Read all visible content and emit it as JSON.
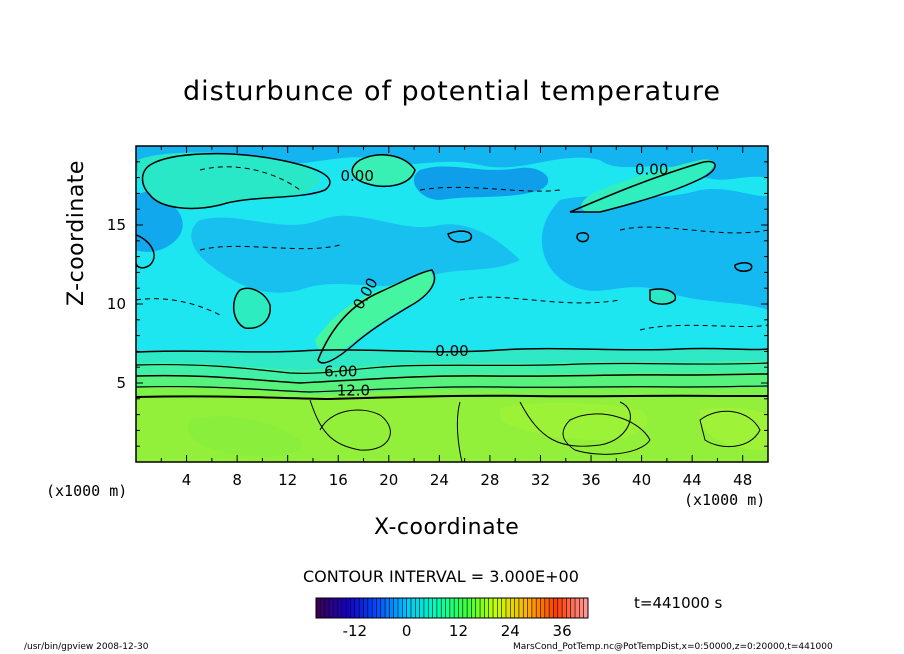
{
  "chart_data": {
    "type": "heatmap",
    "title": "disturbunce of potential temperature",
    "xlabel": "X-coordinate",
    "ylabel": "Z-coordinate",
    "x_unit_left": "(x1000 m)",
    "x_unit_right": "(x1000 m)",
    "xlim": [
      0,
      50
    ],
    "ylim": [
      0,
      20
    ],
    "x_ticks": [
      4,
      8,
      12,
      16,
      20,
      24,
      28,
      32,
      36,
      40,
      44,
      48
    ],
    "y_ticks": [
      5,
      10,
      15
    ],
    "contour_labels": [
      {
        "text": "0.00",
        "x": 17.5,
        "y": 17.8
      },
      {
        "text": "0.00",
        "x": 40.8,
        "y": 18.2
      },
      {
        "text": "0.00",
        "x": 18.5,
        "y": 10.5,
        "rotate": -60
      },
      {
        "text": "0.00",
        "x": 25.0,
        "y": 6.7
      },
      {
        "text": "6.00",
        "x": 16.2,
        "y": 5.4
      },
      {
        "text": "12.0",
        "x": 17.2,
        "y": 4.2
      }
    ],
    "contour_interval_text": "CONTOUR INTERVAL = 3.000E+00",
    "colorbar": {
      "ticks": [
        "-12",
        "0",
        "12",
        "24",
        "36"
      ],
      "tick_values": [
        -12,
        0,
        12,
        24,
        36
      ],
      "range": [
        -21,
        42
      ],
      "colors": [
        "#3b005a",
        "#1500c8",
        "#0050ff",
        "#00c8ff",
        "#00ffb4",
        "#3cff3c",
        "#c8ff00",
        "#ffb400",
        "#ff3c00",
        "#ff9696"
      ]
    },
    "time_label": "t=441000 s"
  },
  "footer": {
    "left": "/usr/bin/gpview   2008-12-30",
    "right": "MarsCond_PotTemp.nc@PotTempDist,x=0:50000,z=0:20000,t=441000"
  }
}
